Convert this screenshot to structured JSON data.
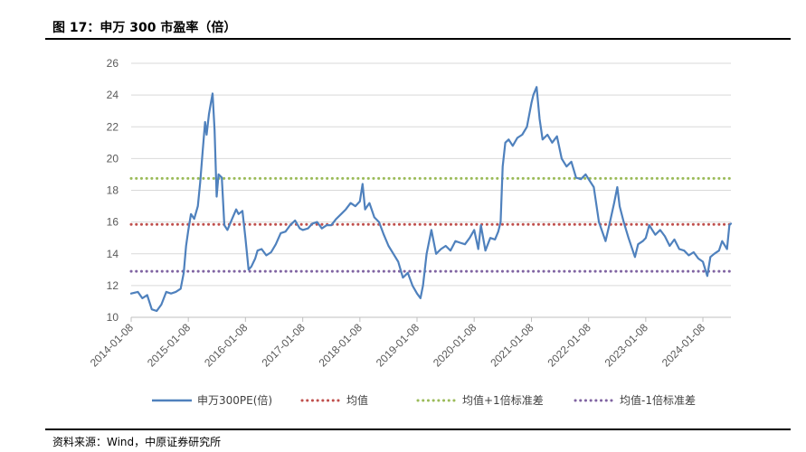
{
  "header": {
    "title": "图 17：申万 300 市盈率（倍）"
  },
  "footer": {
    "source": "资料来源：Wind，中原证券研究所"
  },
  "colors": {
    "pe": "#4F81BD",
    "mean": "#C0504D",
    "upper": "#9BBB59",
    "lower": "#8064A2",
    "grid": "#D9D9D9"
  },
  "chart_data": {
    "type": "line",
    "title": "",
    "xlabel": "",
    "ylabel": "",
    "ylim": [
      10,
      26
    ],
    "yticks": [
      "10",
      "12",
      "14",
      "16",
      "18",
      "20",
      "22",
      "24",
      "26"
    ],
    "xticks": [
      "2014-01-08",
      "2015-01-08",
      "2016-01-08",
      "2017-01-08",
      "2018-01-08",
      "2019-01-08",
      "2020-01-08",
      "2021-01-08",
      "2022-01-08",
      "2023-01-08",
      "2024-01-08"
    ],
    "grid": "horizontal",
    "legend_position": "bottom",
    "series": [
      {
        "name": "申万300PE(倍)",
        "style": "solid",
        "points": [
          [
            "2014-01-08",
            11.5
          ],
          [
            "2014-02-20",
            11.6
          ],
          [
            "2014-03-20",
            11.2
          ],
          [
            "2014-04-20",
            11.4
          ],
          [
            "2014-05-20",
            10.5
          ],
          [
            "2014-06-20",
            10.4
          ],
          [
            "2014-07-20",
            10.8
          ],
          [
            "2014-08-20",
            11.6
          ],
          [
            "2014-09-20",
            11.5
          ],
          [
            "2014-10-20",
            11.6
          ],
          [
            "2014-11-20",
            11.8
          ],
          [
            "2014-12-10",
            12.8
          ],
          [
            "2014-12-25",
            14.5
          ],
          [
            "2015-01-08",
            15.5
          ],
          [
            "2015-01-25",
            16.5
          ],
          [
            "2015-02-15",
            16.2
          ],
          [
            "2015-03-10",
            17.0
          ],
          [
            "2015-03-25",
            18.5
          ],
          [
            "2015-04-10",
            20.5
          ],
          [
            "2015-04-25",
            22.3
          ],
          [
            "2015-05-05",
            21.5
          ],
          [
            "2015-05-20",
            22.8
          ],
          [
            "2015-06-01",
            23.5
          ],
          [
            "2015-06-12",
            24.1
          ],
          [
            "2015-06-25",
            21.8
          ],
          [
            "2015-07-08",
            17.6
          ],
          [
            "2015-07-20",
            19.0
          ],
          [
            "2015-08-10",
            18.8
          ],
          [
            "2015-08-26",
            15.8
          ],
          [
            "2015-09-15",
            15.5
          ],
          [
            "2015-10-15",
            16.2
          ],
          [
            "2015-11-10",
            16.8
          ],
          [
            "2015-11-25",
            16.5
          ],
          [
            "2015-12-20",
            16.7
          ],
          [
            "2016-01-08",
            15.0
          ],
          [
            "2016-01-28",
            13.0
          ],
          [
            "2016-02-15",
            13.2
          ],
          [
            "2016-03-10",
            13.7
          ],
          [
            "2016-03-25",
            14.2
          ],
          [
            "2016-04-20",
            14.3
          ],
          [
            "2016-05-20",
            13.9
          ],
          [
            "2016-06-20",
            14.1
          ],
          [
            "2016-07-20",
            14.6
          ],
          [
            "2016-08-20",
            15.3
          ],
          [
            "2016-09-20",
            15.4
          ],
          [
            "2016-10-20",
            15.8
          ],
          [
            "2016-11-20",
            16.1
          ],
          [
            "2016-12-20",
            15.6
          ],
          [
            "2017-01-08",
            15.5
          ],
          [
            "2017-02-10",
            15.6
          ],
          [
            "2017-03-10",
            15.9
          ],
          [
            "2017-04-10",
            16.0
          ],
          [
            "2017-05-10",
            15.6
          ],
          [
            "2017-06-10",
            15.8
          ],
          [
            "2017-07-10",
            15.8
          ],
          [
            "2017-08-10",
            16.2
          ],
          [
            "2017-09-10",
            16.5
          ],
          [
            "2017-10-10",
            16.8
          ],
          [
            "2017-11-10",
            17.2
          ],
          [
            "2017-12-10",
            17.0
          ],
          [
            "2018-01-08",
            17.3
          ],
          [
            "2018-01-25",
            18.4
          ],
          [
            "2018-02-10",
            16.8
          ],
          [
            "2018-03-10",
            17.2
          ],
          [
            "2018-04-10",
            16.3
          ],
          [
            "2018-05-10",
            16.0
          ],
          [
            "2018-06-10",
            15.2
          ],
          [
            "2018-07-10",
            14.5
          ],
          [
            "2018-08-10",
            14.0
          ],
          [
            "2018-09-10",
            13.5
          ],
          [
            "2018-10-10",
            12.5
          ],
          [
            "2018-11-10",
            12.8
          ],
          [
            "2018-12-10",
            12.0
          ],
          [
            "2019-01-08",
            11.5
          ],
          [
            "2019-01-30",
            11.2
          ],
          [
            "2019-02-15",
            12.0
          ],
          [
            "2019-03-10",
            14.0
          ],
          [
            "2019-04-10",
            15.5
          ],
          [
            "2019-05-10",
            14.0
          ],
          [
            "2019-06-10",
            14.3
          ],
          [
            "2019-07-10",
            14.5
          ],
          [
            "2019-08-10",
            14.2
          ],
          [
            "2019-09-10",
            14.8
          ],
          [
            "2019-10-10",
            14.7
          ],
          [
            "2019-11-10",
            14.6
          ],
          [
            "2019-12-10",
            15.0
          ],
          [
            "2020-01-08",
            15.5
          ],
          [
            "2020-02-03",
            14.3
          ],
          [
            "2020-02-20",
            15.8
          ],
          [
            "2020-03-20",
            14.2
          ],
          [
            "2020-04-20",
            15.0
          ],
          [
            "2020-05-20",
            14.9
          ],
          [
            "2020-06-10",
            15.4
          ],
          [
            "2020-06-25",
            16.0
          ],
          [
            "2020-07-08",
            19.5
          ],
          [
            "2020-07-25",
            21.0
          ],
          [
            "2020-08-15",
            21.2
          ],
          [
            "2020-09-10",
            20.8
          ],
          [
            "2020-10-10",
            21.3
          ],
          [
            "2020-11-10",
            21.5
          ],
          [
            "2020-12-10",
            22.0
          ],
          [
            "2021-01-08",
            23.5
          ],
          [
            "2021-01-20",
            24.0
          ],
          [
            "2021-02-10",
            24.5
          ],
          [
            "2021-03-01",
            22.5
          ],
          [
            "2021-03-20",
            21.2
          ],
          [
            "2021-04-20",
            21.5
          ],
          [
            "2021-05-20",
            21.0
          ],
          [
            "2021-06-20",
            21.4
          ],
          [
            "2021-07-20",
            20.0
          ],
          [
            "2021-08-20",
            19.5
          ],
          [
            "2021-09-20",
            19.8
          ],
          [
            "2021-10-20",
            18.8
          ],
          [
            "2021-11-20",
            18.7
          ],
          [
            "2021-12-20",
            19.0
          ],
          [
            "2022-01-08",
            18.7
          ],
          [
            "2022-02-10",
            18.2
          ],
          [
            "2022-03-15",
            16.0
          ],
          [
            "2022-04-26",
            14.8
          ],
          [
            "2022-05-20",
            15.8
          ],
          [
            "2022-06-20",
            17.2
          ],
          [
            "2022-07-10",
            18.2
          ],
          [
            "2022-07-25",
            17.0
          ],
          [
            "2022-08-20",
            16.0
          ],
          [
            "2022-09-20",
            15.0
          ],
          [
            "2022-10-31",
            13.8
          ],
          [
            "2022-11-20",
            14.6
          ],
          [
            "2022-12-20",
            14.8
          ],
          [
            "2023-01-08",
            15.0
          ],
          [
            "2023-01-30",
            15.8
          ],
          [
            "2023-03-10",
            15.2
          ],
          [
            "2023-04-10",
            15.5
          ],
          [
            "2023-05-10",
            15.1
          ],
          [
            "2023-06-10",
            14.5
          ],
          [
            "2023-07-10",
            14.9
          ],
          [
            "2023-08-10",
            14.3
          ],
          [
            "2023-09-10",
            14.2
          ],
          [
            "2023-10-10",
            13.9
          ],
          [
            "2023-11-10",
            14.1
          ],
          [
            "2023-12-10",
            13.7
          ],
          [
            "2024-01-08",
            13.5
          ],
          [
            "2024-02-05",
            12.6
          ],
          [
            "2024-02-25",
            13.8
          ],
          [
            "2024-03-20",
            14.0
          ],
          [
            "2024-04-20",
            14.2
          ],
          [
            "2024-05-10",
            14.8
          ],
          [
            "2024-06-10",
            14.3
          ],
          [
            "2024-06-25",
            15.8
          ],
          [
            "2024-07-05",
            15.9
          ]
        ]
      },
      {
        "name": "均值",
        "style": "dotted",
        "value": 15.85
      },
      {
        "name": "均值+1倍标准差",
        "style": "dotted",
        "value": 18.75
      },
      {
        "name": "均值-1倍标准差",
        "style": "dotted",
        "value": 12.9
      }
    ]
  }
}
